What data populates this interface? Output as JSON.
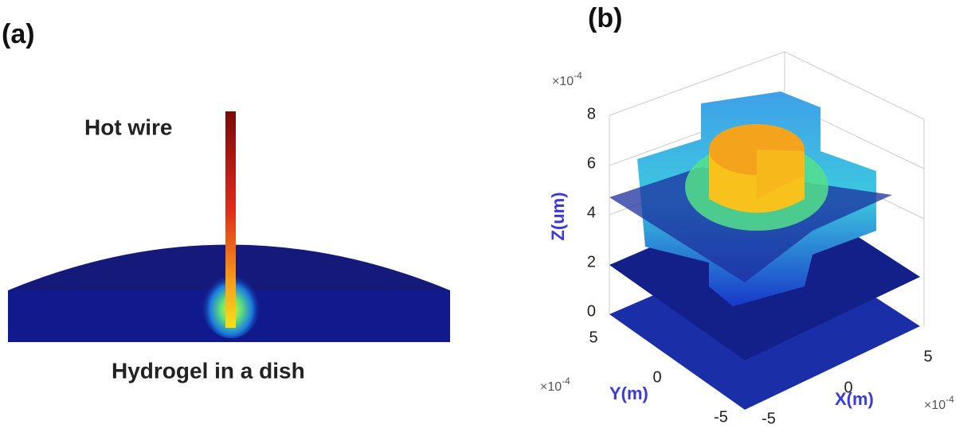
{
  "panel_a": {
    "label": "(a)",
    "wire_label": "Hot wire",
    "dish_label": "Hydrogel in a dish"
  },
  "panel_b": {
    "label": "(b)",
    "z_axis": {
      "title": "Z(um)",
      "multiplier": "×10",
      "exponent": "-4",
      "ticks": [
        0,
        2,
        4,
        6,
        8
      ]
    },
    "y_axis": {
      "title": "Y(m)",
      "multiplier": "×10",
      "exponent": "-4",
      "ticks": [
        5,
        0,
        -5
      ]
    },
    "x_axis": {
      "title": "X(m)",
      "multiplier": "×10",
      "exponent": "-4",
      "ticks": [
        -5,
        0,
        5
      ]
    }
  }
}
